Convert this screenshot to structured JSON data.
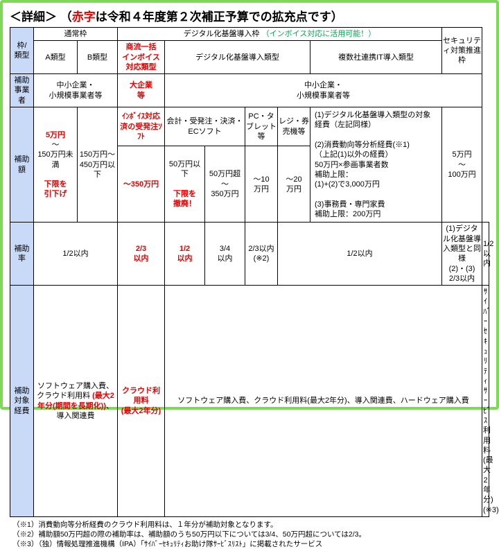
{
  "title_prefix": "＜詳細＞",
  "title_paren_open": "（",
  "title_red": "赤字",
  "title_rest": "は令和４年度第２次補正予算での拡充点です）",
  "headers": {
    "waku_ruikei": "枠/\n類型",
    "tsujo": "通常枠",
    "digital_intro": "デジタル化基盤導入枠",
    "invoice_note": "（インボイス対応に活用可能！）",
    "security": "セキュリティ対策推進枠",
    "a_rui": "A類型",
    "b_rui": "B類型",
    "shoryu": "商流一括\nインボイス\n対応類型",
    "digital_rui": "デジタル化基盤導入類型",
    "multi_rui": "複数社連携IT導入類型"
  },
  "row_labels": {
    "jigyosha": "補助\n事業者",
    "hojogaku": "補助額",
    "hojoritsu": "補助率",
    "taisho": "補助\n対象\n経費"
  },
  "jigyosha": {
    "chusho": "中小企業・\n小規模事業者等",
    "daikigyo": "大企業\n等",
    "chusho2": "中小企業・\n小規模事業者等"
  },
  "hojogaku": {
    "a_col": {
      "top": "5万円",
      "tilde": "～",
      "mid": "150万円未満",
      "bottom": "下限を\n引下げ"
    },
    "b_col": "150万円～\n450万円以下",
    "shoryu_top": "ｲﾝﾎﾞｲｽ対応済の受発注ｿﾌﾄ",
    "shoryu_amt": "～350万円",
    "sub_hdr": {
      "kaikei": "会計・受発注・決済・ECソフト",
      "pc": "PC・タブレット等",
      "regi": "レジ・券売機等"
    },
    "d1": "50万円以下",
    "d1_note": "下限を\n撤廃！",
    "d2": "50万円超\n～\n350万円",
    "pc_amt": "～10\n万円",
    "regi_amt": "～20\n万円",
    "multi": "(1)デジタル化基盤導入類型の対象経費（左記同様）\n\n(2)消費動向等分析経費(※1)\n（上記(1)以外の経費）\n50万円×参画事業者数\n補助上限：\n(1)+(2)で3,000万円\n\n(3)事務費・専門家費\n補助上限：200万円",
    "sec": "5万円\n～\n100万円"
  },
  "hojoritsu": {
    "ab": "1/2以内",
    "shoryu": "2/3\n以内",
    "d1": "1/2\n以内",
    "d2a": "3/4\n以内",
    "d2b": "2/3以内\n(※2)",
    "pcregi": "1/2以内",
    "multi": "(1)デジタル化基盤導入類型と同様\n(2)・(3) 2/3以内",
    "sec": "1/2以内"
  },
  "taisho": {
    "a": "ソフトウェア購入費、クラウド利用料",
    "a_red": "(最大2年分(期間を長期化))",
    "a_end": "、導入関連費",
    "shoryu": "クラウド利用料\n(最大2年分)",
    "digital": "ソフトウェア購入費、クラウド利用料(最大2年分)、導入関連費、ハードウェア購入費",
    "sec": "ｻｲﾊﾞｰｾｷｭﾘﾃｨｻｰﾋﾞｽ利用料(最大2年分)\n(※3)"
  },
  "notes": {
    "n1": "（※1）消費動向等分析経費のクラウド利用料は、１年分が補助対象となります。",
    "n2": "（※2）補助額50万円超の際の補助率は、補助額のうち50万円以下については3/4、50万円超については2/3。",
    "n3": "（※3）（独）情報処理推進機構（IPA）「ｻｲﾊﾞｰｾｷｭﾘﾃｨお助け隊ｻｰﾋﾞｽﾘｽﾄ」に掲載されたサービス"
  }
}
